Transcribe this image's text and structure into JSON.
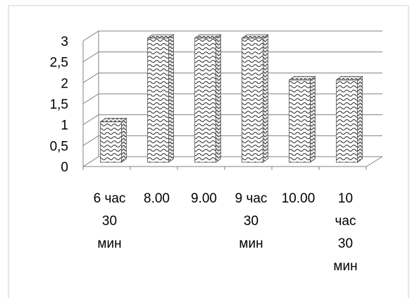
{
  "chart_data": {
    "type": "bar",
    "title": "",
    "xlabel": "",
    "ylabel": "",
    "categories": [
      [
        "6 час",
        "30",
        "мин"
      ],
      [
        "8.00"
      ],
      [
        "9.00"
      ],
      [
        "9 час",
        "30",
        "мин"
      ],
      [
        "10.00"
      ],
      [
        "10",
        "час",
        "30",
        "мин"
      ]
    ],
    "values": [
      1,
      3,
      3,
      3,
      2,
      2
    ],
    "ylim": [
      0,
      3
    ],
    "yticks": [
      "0",
      "0,5",
      "1",
      "1,5",
      "2",
      "2,5",
      "3"
    ],
    "grid": true,
    "legend": "none",
    "style": "3d",
    "colors": {
      "bar_fill": "#ffffff",
      "bar_pattern": "#333333",
      "grid": "#808080",
      "axis_text": "#000000"
    }
  }
}
